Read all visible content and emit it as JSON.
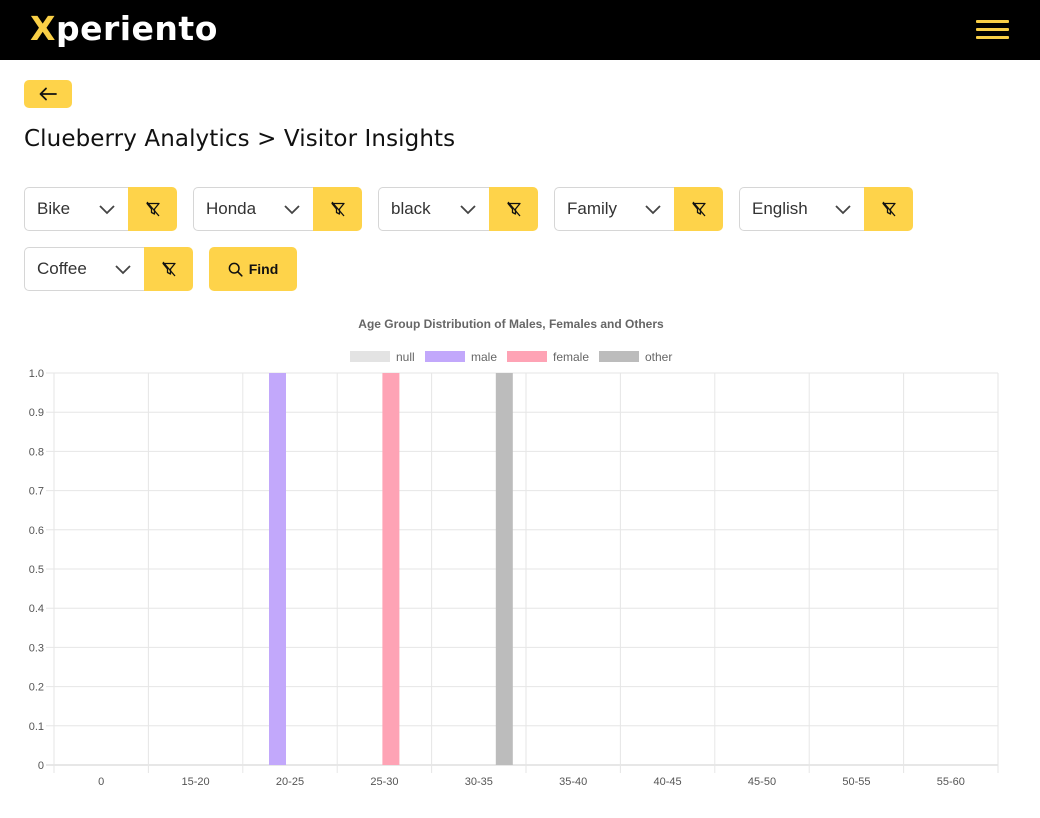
{
  "header": {
    "logo_first": "X",
    "logo_rest": "periento"
  },
  "page": {
    "title": "Clueberry Analytics > Visitor Insights"
  },
  "filters": [
    {
      "value": "Bike"
    },
    {
      "value": "Honda"
    },
    {
      "value": "black"
    },
    {
      "value": "Family"
    },
    {
      "value": "English"
    },
    {
      "value": "Coffee"
    }
  ],
  "find": {
    "label": "Find"
  },
  "colors": {
    "accent": "#fed34a",
    "header_bg": "#000000"
  },
  "chart_data": {
    "type": "bar",
    "title": "Age Group Distribution of Males, Females and Others",
    "categories": [
      "0",
      "15-20",
      "20-25",
      "25-30",
      "30-35",
      "35-40",
      "40-45",
      "45-50",
      "50-55",
      "55-60"
    ],
    "series": [
      {
        "name": "null",
        "color": "#e3e3e3",
        "values": [
          0,
          0,
          0,
          0,
          0,
          0,
          0,
          0,
          0,
          0
        ]
      },
      {
        "name": "male",
        "color": "#c2a8fb",
        "values": [
          0,
          0,
          1,
          0,
          0,
          0,
          0,
          0,
          0,
          0
        ]
      },
      {
        "name": "female",
        "color": "#fea3b5",
        "values": [
          0,
          0,
          0,
          1,
          0,
          0,
          0,
          0,
          0,
          0
        ]
      },
      {
        "name": "other",
        "color": "#bcbcbc",
        "values": [
          0,
          0,
          0,
          0,
          1,
          0,
          0,
          0,
          0,
          0
        ]
      }
    ],
    "y_ticks": [
      "0",
      "0.1",
      "0.2",
      "0.3",
      "0.4",
      "0.5",
      "0.6",
      "0.7",
      "0.8",
      "0.9",
      "1.0"
    ],
    "ylim": [
      0,
      1
    ],
    "grid": true,
    "legend": "top"
  }
}
